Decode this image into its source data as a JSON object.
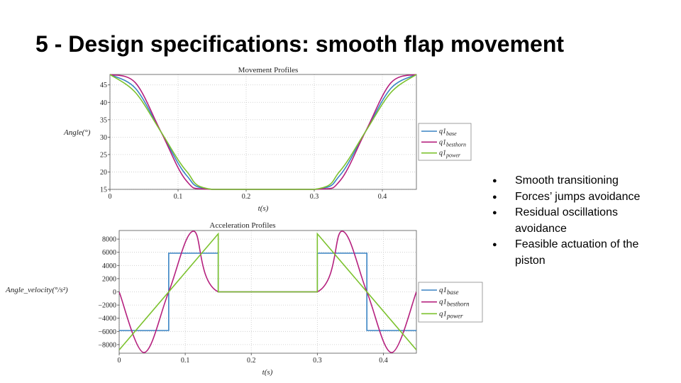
{
  "slide": {
    "title": "5 - Design specifications: smooth flap movement",
    "bullets": [
      "Smooth transitioning",
      "Forces’ jumps avoidance",
      "Residual oscillations avoidance",
      "Feasible actuation of the piston"
    ]
  },
  "chart_data": [
    {
      "type": "line",
      "title": "Movement Profiles",
      "xlabel": "t(s)",
      "ylabel": "Angle(°)",
      "xlim": [
        0,
        0.45
      ],
      "ylim": [
        15,
        48
      ],
      "xticks": [
        0,
        0.1,
        0.2,
        0.3,
        0.4
      ],
      "yticks": [
        15,
        20,
        25,
        30,
        35,
        40,
        45
      ],
      "grid": true,
      "legend_position": "right",
      "series": [
        {
          "name": "q1_base",
          "color": "#3a84c4",
          "x": [
            0,
            0.0375,
            0.075,
            0.1125,
            0.15,
            0.3,
            0.3375,
            0.375,
            0.4125,
            0.45
          ],
          "y": [
            48,
            44.0,
            31.5,
            19.0,
            15,
            15,
            19.0,
            31.5,
            44.0,
            48
          ]
        },
        {
          "name": "q1_besthorn",
          "color": "#b5207e",
          "x": [
            0,
            0.0375,
            0.075,
            0.1125,
            0.15,
            0.3,
            0.3375,
            0.375,
            0.4125,
            0.45
          ],
          "y": [
            48,
            45.6,
            31.5,
            17.4,
            15,
            15,
            17.4,
            31.5,
            45.6,
            48
          ]
        },
        {
          "name": "q1_power",
          "color": "#7cc22e",
          "x": [
            0,
            0.0375,
            0.075,
            0.1125,
            0.15,
            0.3,
            0.3375,
            0.375,
            0.4125,
            0.45
          ],
          "y": [
            48,
            42.8,
            31.5,
            20.2,
            15,
            15,
            20.2,
            31.5,
            42.8,
            48
          ]
        }
      ]
    },
    {
      "type": "line",
      "title": "Acceleration Profiles",
      "xlabel": "t(s)",
      "ylabel": "Angle_velocity(°/s²)",
      "xlim": [
        0,
        0.45
      ],
      "ylim": [
        -9300,
        9300
      ],
      "xticks": [
        0,
        0.1,
        0.2,
        0.3,
        0.4
      ],
      "yticks": [
        -8000,
        -6000,
        -4000,
        -2000,
        0,
        2000,
        4000,
        6000,
        8000
      ],
      "grid": true,
      "legend_position": "right",
      "series": [
        {
          "name": "q1_base",
          "color": "#3a84c4",
          "x": [
            0,
            0.075,
            0.075,
            0.15,
            0.15,
            0.3,
            0.3,
            0.375,
            0.375,
            0.45
          ],
          "y": [
            -5860,
            -5860,
            5860,
            5860,
            0,
            0,
            5860,
            5860,
            -5860,
            -5860
          ]
        },
        {
          "name": "q1_besthorn",
          "color": "#b5207e",
          "x": [
            0,
            0.0375,
            0.075,
            0.1125,
            0.15,
            0.3,
            0.3375,
            0.375,
            0.4125,
            0.45
          ],
          "y": [
            0,
            -9200,
            0,
            9200,
            0,
            0,
            9200,
            0,
            -9200,
            0
          ]
        },
        {
          "name": "q1_power",
          "color": "#7cc22e",
          "x": [
            0,
            0.15,
            0.15,
            0.3,
            0.3,
            0.45
          ],
          "y": [
            -8800,
            8800,
            0,
            0,
            8800,
            -8800
          ]
        }
      ]
    }
  ]
}
